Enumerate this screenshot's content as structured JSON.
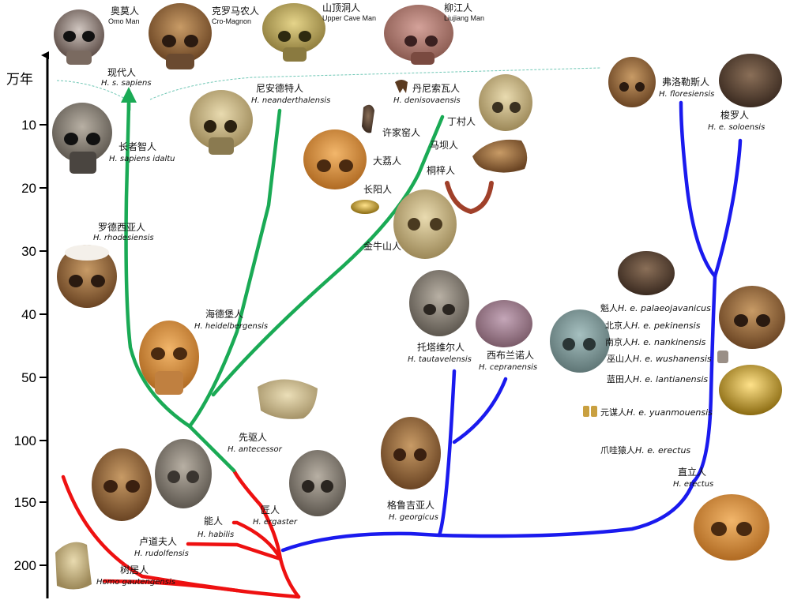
{
  "axis": {
    "unit": "万年",
    "ticks": [
      "10",
      "20",
      "30",
      "40",
      "50",
      "100",
      "150",
      "200"
    ]
  },
  "colors": {
    "green": "#1aaa55",
    "red": "#ee1111",
    "blue": "#1a1aee",
    "axis": "#000000",
    "dashed": "#6fc7b5"
  },
  "labels": {
    "omo": {
      "zh": "奥莫人",
      "en": "Omo Man"
    },
    "cromagnon": {
      "zh": "克罗马农人",
      "en": "Cro-Magnon"
    },
    "uppercave": {
      "zh": "山顶洞人",
      "en": "Upper Cave Man"
    },
    "liujiang": {
      "zh": "柳江人",
      "en": "Liujiang Man"
    },
    "sapiens": {
      "zh": "现代人",
      "sci": "H. s. sapiens"
    },
    "neanderthal": {
      "zh": "尼安德特人",
      "sci": "H. neanderthalensis"
    },
    "denisova": {
      "zh": "丹尼索瓦人",
      "sci": "H. denisovaensis"
    },
    "idaltu": {
      "zh": "长者智人",
      "sci": "H. sapiens idaltu"
    },
    "xujiayao": {
      "zh": "许家窑人"
    },
    "dingcun": {
      "zh": "丁村人"
    },
    "mapa": {
      "zh": "马坝人"
    },
    "dali": {
      "zh": "大荔人"
    },
    "tongzi": {
      "zh": "桐梓人"
    },
    "changyang": {
      "zh": "长阳人"
    },
    "jinniushan": {
      "zh": "金牛山人"
    },
    "rhodesiensis": {
      "zh": "罗德西亚人",
      "sci": "H. rhodesiensis"
    },
    "heidelbergensis": {
      "zh": "海德堡人",
      "sci": "H. heidelbergensis"
    },
    "antecessor": {
      "zh": "先驱人",
      "sci": "H. antecessor"
    },
    "ergaster": {
      "zh": "匠人",
      "sci": "H. ergaster"
    },
    "habilis": {
      "zh": "能人",
      "sci": "H. habilis"
    },
    "rudolfensis": {
      "zh": "卢道夫人",
      "sci": "H. rudolfensis"
    },
    "gautengensis": {
      "zh": "树居人",
      "sci": "Homo gautengensis"
    },
    "georgicus": {
      "zh": "格鲁吉亚人",
      "sci": "H. georgicus"
    },
    "tautavelensis": {
      "zh": "托塔维尔人",
      "sci": "H. tautavelensis"
    },
    "cepranensis": {
      "zh": "西布兰诺人",
      "sci": "H. cepranensis"
    },
    "floresiensis": {
      "zh": "弗洛勒斯人",
      "sci": "H. floresiensis"
    },
    "soloensis": {
      "zh": "梭罗人",
      "sci": "H. e. soloensis"
    },
    "palaeojavanicus": {
      "zh": "魁人",
      "sci": "H. e. palaeojavanicus"
    },
    "pekinensis": {
      "zh": "北京人",
      "sci": "H. e. pekinensis"
    },
    "nankinensis": {
      "zh": "南京人",
      "sci": "H. e. nankinensis"
    },
    "wushanensis": {
      "zh": "巫山人",
      "sci": "H. e. wushanensis"
    },
    "lantianensis": {
      "zh": "蓝田人",
      "sci": "H. e. lantianensis"
    },
    "yuanmouensis": {
      "zh": "元谋人",
      "sci": "H. e. yuanmouensis"
    },
    "javaman": {
      "zh": "爪哇猿人",
      "sci": "H. e. erectus"
    },
    "erectus": {
      "zh": "直立人",
      "sci": "H. erectus"
    }
  }
}
